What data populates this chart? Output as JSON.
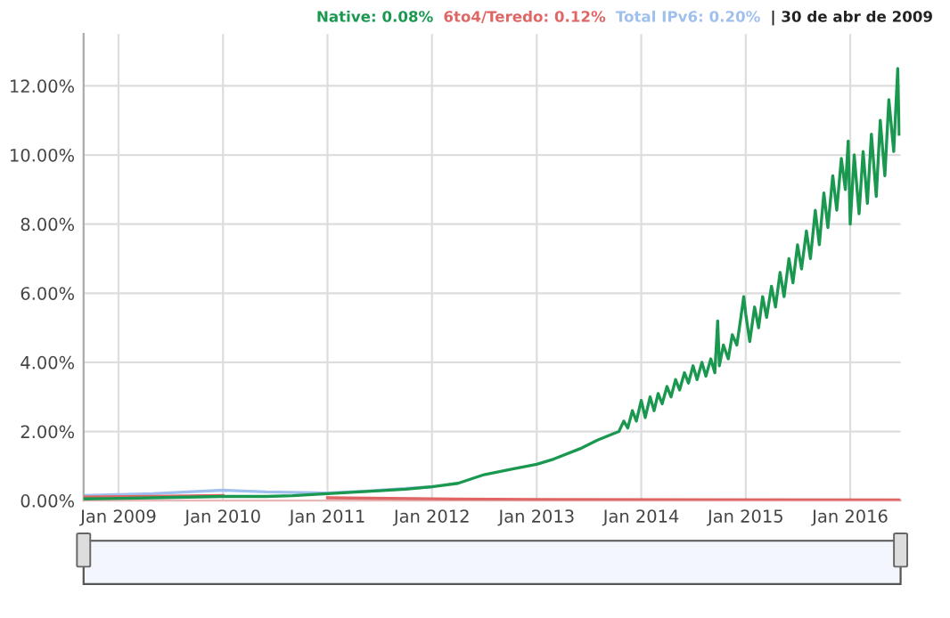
{
  "chart_data": {
    "type": "line",
    "grid": true,
    "marker": "none",
    "line_style": "solid",
    "xlim": [
      "2008-09-01",
      "2016-06-25"
    ],
    "xticks": [
      {
        "value": "2009-01-01",
        "label": "Jan 2009"
      },
      {
        "value": "2010-01-01",
        "label": "Jan 2010"
      },
      {
        "value": "2011-01-01",
        "label": "Jan 2011"
      },
      {
        "value": "2012-01-01",
        "label": "Jan 2012"
      },
      {
        "value": "2013-01-01",
        "label": "Jan 2013"
      },
      {
        "value": "2014-01-01",
        "label": "Jan 2014"
      },
      {
        "value": "2015-01-01",
        "label": "Jan 2015"
      },
      {
        "value": "2016-01-01",
        "label": "Jan 2016"
      }
    ],
    "ylim": [
      0,
      13.5
    ],
    "yticks": [
      {
        "value": 0,
        "label": "0.00%"
      },
      {
        "value": 2,
        "label": "2.00%"
      },
      {
        "value": 4,
        "label": "4.00%"
      },
      {
        "value": 6,
        "label": "6.00%"
      },
      {
        "value": 8,
        "label": "8.00%"
      },
      {
        "value": 10,
        "label": "10.00%"
      },
      {
        "value": 12,
        "label": "12.00%"
      }
    ],
    "series": [
      {
        "color": "#1a9850",
        "x": [
          "2008-09-01",
          "2008-12-01",
          "2009-04-30",
          "2009-09-01",
          "2010-01-01",
          "2010-06-01",
          "2010-09-01",
          "2011-01-01",
          "2011-06-01",
          "2011-10-01",
          "2012-01-01",
          "2012-04-01",
          "2012-07-01",
          "2012-10-01",
          "2013-01-01",
          "2013-03-01",
          "2013-06-01",
          "2013-08-01",
          "2013-10-15",
          "2013-11-01",
          "2013-11-15",
          "2013-12-01",
          "2013-12-15",
          "2014-01-01",
          "2014-01-15",
          "2014-02-01",
          "2014-02-15",
          "2014-03-01",
          "2014-03-15",
          "2014-04-01",
          "2014-04-15",
          "2014-05-01",
          "2014-05-15",
          "2014-06-01",
          "2014-06-15",
          "2014-07-01",
          "2014-07-15",
          "2014-08-01",
          "2014-08-15",
          "2014-09-01",
          "2014-09-15",
          "2014-09-25",
          "2014-10-01",
          "2014-10-15",
          "2014-11-01",
          "2014-11-15",
          "2014-12-01",
          "2014-12-15",
          "2014-12-25",
          "2015-01-01",
          "2015-01-15",
          "2015-02-01",
          "2015-02-15",
          "2015-03-01",
          "2015-03-15",
          "2015-04-01",
          "2015-04-15",
          "2015-05-01",
          "2015-05-15",
          "2015-06-01",
          "2015-06-15",
          "2015-07-01",
          "2015-07-15",
          "2015-08-01",
          "2015-08-15",
          "2015-09-01",
          "2015-09-15",
          "2015-10-01",
          "2015-10-15",
          "2015-11-01",
          "2015-11-15",
          "2015-12-01",
          "2015-12-15",
          "2015-12-25",
          "2016-01-01",
          "2016-01-15",
          "2016-02-01",
          "2016-02-15",
          "2016-03-01",
          "2016-03-15",
          "2016-04-01",
          "2016-04-15",
          "2016-05-01",
          "2016-05-15",
          "2016-06-01",
          "2016-06-15",
          "2016-06-20"
        ],
        "values": [
          0.05,
          0.06,
          0.08,
          0.1,
          0.12,
          0.12,
          0.14,
          0.2,
          0.27,
          0.33,
          0.4,
          0.5,
          0.75,
          0.9,
          1.05,
          1.2,
          1.5,
          1.75,
          2.0,
          2.3,
          2.1,
          2.6,
          2.3,
          2.9,
          2.4,
          3.0,
          2.6,
          3.1,
          2.8,
          3.3,
          3.0,
          3.5,
          3.2,
          3.7,
          3.4,
          3.9,
          3.5,
          4.0,
          3.6,
          4.1,
          3.7,
          5.2,
          3.9,
          4.5,
          4.1,
          4.8,
          4.5,
          5.3,
          5.9,
          5.4,
          4.6,
          5.6,
          5.0,
          5.9,
          5.3,
          6.2,
          5.6,
          6.6,
          5.9,
          7.0,
          6.3,
          7.4,
          6.7,
          7.8,
          7.0,
          8.4,
          7.4,
          8.9,
          7.9,
          9.4,
          8.4,
          9.9,
          9.0,
          10.4,
          8.0,
          10.0,
          8.3,
          10.1,
          8.6,
          10.6,
          8.8,
          11.0,
          9.4,
          11.6,
          10.1,
          12.5,
          10.6
        ]
      },
      {
        "color": "#e06666",
        "x": [
          "2008-09-01",
          "2009-04-30",
          "2010-01-01",
          "2010-06-01",
          "2011-01-01",
          "2012-01-01",
          "2013-01-01",
          "2016-06-20"
        ],
        "values": [
          0.1,
          0.12,
          0.15,
          null,
          0.08,
          0.05,
          0.03,
          0.02
        ]
      },
      {
        "color": "#9fc0ee",
        "x": [
          "2008-09-01",
          "2009-04-30",
          "2009-09-01",
          "2010-01-01",
          "2010-06-01",
          "2011-01-01",
          "2011-06-01",
          "2012-01-01"
        ],
        "values": [
          0.15,
          0.2,
          0.25,
          0.3,
          0.25,
          0.22,
          0.28,
          0.4
        ]
      }
    ],
    "annotations": [
      "Native: 0.08%",
      "6to4/Teredo: 0.12%",
      "Total IPv6: 0.20%",
      "| 30 de abr de 2009"
    ]
  }
}
